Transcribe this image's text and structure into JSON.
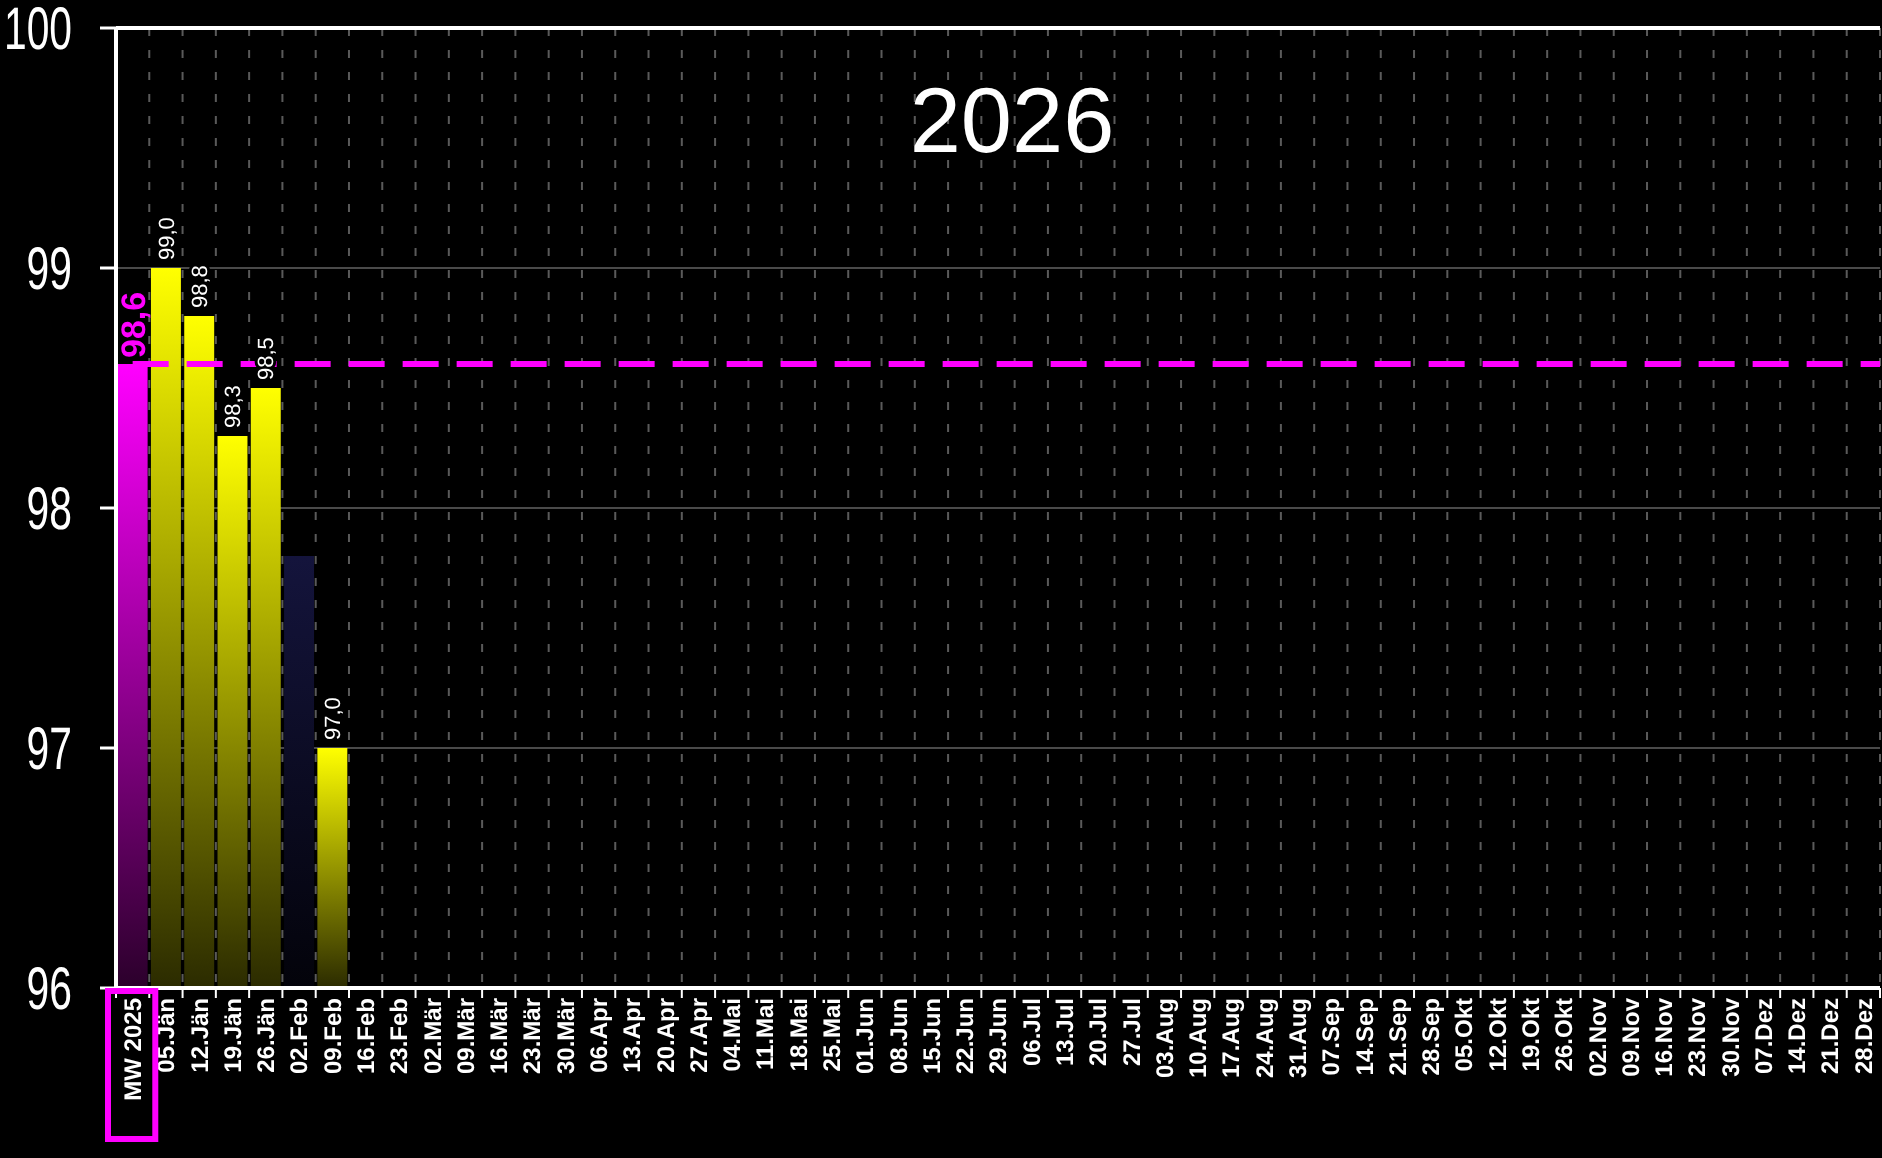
{
  "chart_data": {
    "type": "bar",
    "title": "2026",
    "categories": [
      "MW 2025",
      "05.Jän",
      "12.Jän",
      "19.Jän",
      "26.Jän",
      "02.Feb",
      "09.Feb",
      "16.Feb",
      "23.Feb",
      "02.Mär",
      "09.Mär",
      "16.Mär",
      "23.Mär",
      "30.Mär",
      "06.Apr",
      "13.Apr",
      "20.Apr",
      "27.Apr",
      "04.Mai",
      "11.Mai",
      "18.Mai",
      "25.Mai",
      "01.Jun",
      "08.Jun",
      "15.Jun",
      "22.Jun",
      "29.Jun",
      "06.Jul",
      "13.Jul",
      "20.Jul",
      "27.Jul",
      "03.Aug",
      "10.Aug",
      "17.Aug",
      "24.Aug",
      "31.Aug",
      "07.Sep",
      "14.Sep",
      "21.Sep",
      "28.Sep",
      "05.Okt",
      "12.Okt",
      "19.Okt",
      "26.Okt",
      "02.Nov",
      "09.Nov",
      "16.Nov",
      "23.Nov",
      "30.Nov",
      "07.Dez",
      "14.Dez",
      "21.Dez",
      "28.Dez"
    ],
    "values": [
      98.6,
      99.0,
      98.8,
      98.3,
      98.5,
      97.8,
      97.0,
      null,
      null,
      null,
      null,
      null,
      null,
      null,
      null,
      null,
      null,
      null,
      null,
      null,
      null,
      null,
      null,
      null,
      null,
      null,
      null,
      null,
      null,
      null,
      null,
      null,
      null,
      null,
      null,
      null,
      null,
      null,
      null,
      null,
      null,
      null,
      null,
      null,
      null,
      null,
      null,
      null,
      null,
      null,
      null,
      null,
      null
    ],
    "colors": [
      "#ff00ff",
      "#ffff00",
      "#ffff00",
      "#ffff00",
      "#ffff00",
      "#14143c",
      "#ffff00",
      null,
      null,
      null,
      null,
      null,
      null,
      null,
      null,
      null,
      null,
      null,
      null,
      null,
      null,
      null,
      null,
      null,
      null,
      null,
      null,
      null,
      null,
      null,
      null,
      null,
      null,
      null,
      null,
      null,
      null,
      null,
      null,
      null,
      null,
      null,
      null,
      null,
      null,
      null,
      null,
      null,
      null,
      null,
      null,
      null,
      null
    ],
    "value_labels": [
      null,
      "99,0",
      "98,8",
      "98,3",
      "98,5",
      null,
      "97,0",
      null,
      null,
      null,
      null,
      null,
      null,
      null,
      null,
      null,
      null,
      null,
      null,
      null,
      null,
      null,
      null,
      null,
      null,
      null,
      null,
      null,
      null,
      null,
      null,
      null,
      null,
      null,
      null,
      null,
      null,
      null,
      null,
      null,
      null,
      null,
      null,
      null,
      null,
      null,
      null,
      null,
      null,
      null,
      null,
      null,
      null
    ],
    "ylim": [
      96,
      100
    ],
    "yticks": [
      96,
      97,
      98,
      99,
      100
    ],
    "grid": true,
    "ref_lines": [
      {
        "axis": "y",
        "value": 98.6,
        "label": "98,6",
        "color": "#ff00ff",
        "line_style": "dashed"
      }
    ]
  }
}
